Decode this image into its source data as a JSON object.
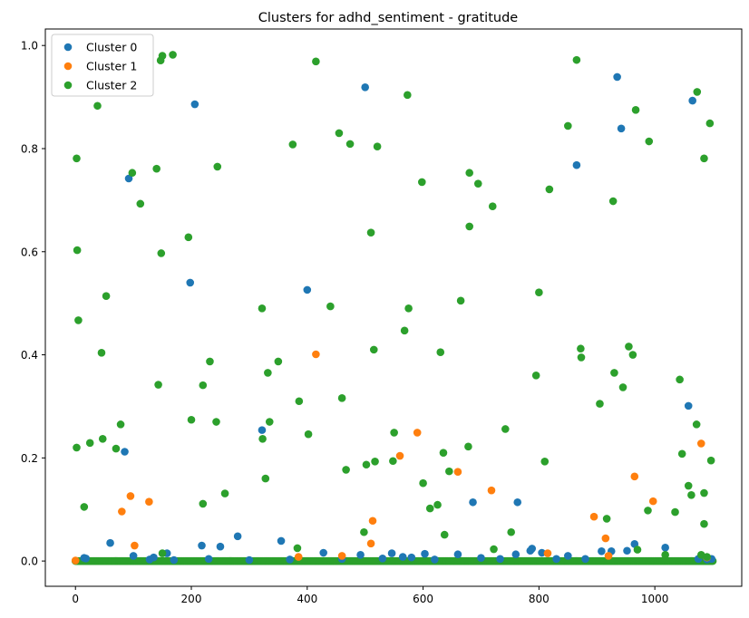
{
  "chart_data": {
    "type": "scatter",
    "title": "Clusters for adhd_sentiment - gratitude",
    "xlabel": "",
    "ylabel": "",
    "xlim": [
      -52,
      1150
    ],
    "ylim": [
      -0.049,
      1.032
    ],
    "x_ticks": [
      0,
      200,
      400,
      600,
      800,
      1000
    ],
    "y_ticks": [
      0.0,
      0.2,
      0.4,
      0.6,
      0.8,
      1.0
    ],
    "y_tick_labels": [
      "0.0",
      "0.2",
      "0.4",
      "0.6",
      "0.8",
      "1.0"
    ],
    "grid": false,
    "legend_position": "top-left",
    "series": [
      {
        "name": "Cluster 0",
        "color": "#1f77b4",
        "points": [
          [
            15,
            0.006
          ],
          [
            18,
            0.005
          ],
          [
            60,
            0.035
          ],
          [
            85,
            0.212
          ],
          [
            92,
            0.742
          ],
          [
            100,
            0.01
          ],
          [
            128,
            0.003
          ],
          [
            135,
            0.007
          ],
          [
            158,
            0.015
          ],
          [
            170,
            0.002
          ],
          [
            198,
            0.54
          ],
          [
            206,
            0.886
          ],
          [
            218,
            0.03
          ],
          [
            230,
            0.004
          ],
          [
            250,
            0.028
          ],
          [
            280,
            0.048
          ],
          [
            300,
            0.002
          ],
          [
            322,
            0.254
          ],
          [
            355,
            0.039
          ],
          [
            370,
            0.003
          ],
          [
            400,
            0.526
          ],
          [
            428,
            0.016
          ],
          [
            460,
            0.004
          ],
          [
            492,
            0.012
          ],
          [
            500,
            0.919
          ],
          [
            530,
            0.005
          ],
          [
            546,
            0.015
          ],
          [
            565,
            0.008
          ],
          [
            580,
            0.007
          ],
          [
            603,
            0.014
          ],
          [
            620,
            0.003
          ],
          [
            660,
            0.013
          ],
          [
            686,
            0.114
          ],
          [
            700,
            0.006
          ],
          [
            733,
            0.004
          ],
          [
            760,
            0.013
          ],
          [
            763,
            0.114
          ],
          [
            785,
            0.02
          ],
          [
            788,
            0.024
          ],
          [
            805,
            0.016
          ],
          [
            830,
            0.004
          ],
          [
            850,
            0.01
          ],
          [
            865,
            0.768
          ],
          [
            880,
            0.004
          ],
          [
            908,
            0.019
          ],
          [
            925,
            0.019
          ],
          [
            935,
            0.939
          ],
          [
            942,
            0.839
          ],
          [
            952,
            0.02
          ],
          [
            965,
            0.033
          ],
          [
            1018,
            0.026
          ],
          [
            1058,
            0.301
          ],
          [
            1065,
            0.893
          ],
          [
            1075,
            0.004
          ],
          [
            1090,
            0.003
          ],
          [
            1098,
            0.004
          ]
        ]
      },
      {
        "name": "Cluster 1",
        "color": "#ff7f0e",
        "points": [
          [
            0,
            0.001
          ],
          [
            80,
            0.096
          ],
          [
            95,
            0.126
          ],
          [
            102,
            0.03
          ],
          [
            127,
            0.115
          ],
          [
            385,
            0.008
          ],
          [
            415,
            0.401
          ],
          [
            460,
            0.01
          ],
          [
            510,
            0.034
          ],
          [
            513,
            0.078
          ],
          [
            560,
            0.204
          ],
          [
            590,
            0.249
          ],
          [
            660,
            0.173
          ],
          [
            718,
            0.137
          ],
          [
            815,
            0.015
          ],
          [
            895,
            0.086
          ],
          [
            915,
            0.044
          ],
          [
            920,
            0.01
          ],
          [
            965,
            0.164
          ],
          [
            997,
            0.116
          ],
          [
            1080,
            0.228
          ],
          [
            1090,
            0.007
          ]
        ]
      },
      {
        "name": "Cluster 2",
        "color": "#2ca02c",
        "points": [
          [
            2,
            0.781
          ],
          [
            2,
            0.22
          ],
          [
            3,
            0.603
          ],
          [
            5,
            0.467
          ],
          [
            15,
            0.105
          ],
          [
            25,
            0.229
          ],
          [
            38,
            0.883
          ],
          [
            45,
            0.404
          ],
          [
            47,
            0.237
          ],
          [
            53,
            0.514
          ],
          [
            70,
            0.218
          ],
          [
            78,
            0.265
          ],
          [
            98,
            0.753
          ],
          [
            112,
            0.693
          ],
          [
            140,
            0.761
          ],
          [
            143,
            0.342
          ],
          [
            147,
            0.971
          ],
          [
            148,
            0.597
          ],
          [
            150,
            0.98
          ],
          [
            150,
            0.015
          ],
          [
            168,
            0.982
          ],
          [
            195,
            0.628
          ],
          [
            200,
            0.274
          ],
          [
            220,
            0.341
          ],
          [
            220,
            0.111
          ],
          [
            232,
            0.387
          ],
          [
            243,
            0.27
          ],
          [
            245,
            0.765
          ],
          [
            258,
            0.131
          ],
          [
            322,
            0.49
          ],
          [
            323,
            0.237
          ],
          [
            328,
            0.16
          ],
          [
            332,
            0.365
          ],
          [
            335,
            0.27
          ],
          [
            350,
            0.387
          ],
          [
            375,
            0.808
          ],
          [
            383,
            0.025
          ],
          [
            386,
            0.31
          ],
          [
            402,
            0.246
          ],
          [
            415,
            0.969
          ],
          [
            440,
            0.494
          ],
          [
            455,
            0.83
          ],
          [
            460,
            0.316
          ],
          [
            467,
            0.177
          ],
          [
            474,
            0.809
          ],
          [
            498,
            0.056
          ],
          [
            502,
            0.187
          ],
          [
            510,
            0.637
          ],
          [
            515,
            0.41
          ],
          [
            517,
            0.193
          ],
          [
            521,
            0.804
          ],
          [
            548,
            0.194
          ],
          [
            550,
            0.249
          ],
          [
            568,
            0.447
          ],
          [
            573,
            0.904
          ],
          [
            575,
            0.49
          ],
          [
            598,
            0.735
          ],
          [
            600,
            0.151
          ],
          [
            612,
            0.102
          ],
          [
            625,
            0.109
          ],
          [
            630,
            0.405
          ],
          [
            635,
            0.21
          ],
          [
            637,
            0.051
          ],
          [
            645,
            0.174
          ],
          [
            665,
            0.505
          ],
          [
            678,
            0.222
          ],
          [
            680,
            0.753
          ],
          [
            680,
            0.649
          ],
          [
            695,
            0.732
          ],
          [
            720,
            0.688
          ],
          [
            722,
            0.023
          ],
          [
            742,
            0.256
          ],
          [
            752,
            0.056
          ],
          [
            795,
            0.36
          ],
          [
            800,
            0.521
          ],
          [
            810,
            0.193
          ],
          [
            818,
            0.721
          ],
          [
            850,
            0.844
          ],
          [
            865,
            0.972
          ],
          [
            872,
            0.412
          ],
          [
            873,
            0.395
          ],
          [
            905,
            0.305
          ],
          [
            917,
            0.082
          ],
          [
            928,
            0.698
          ],
          [
            930,
            0.365
          ],
          [
            945,
            0.337
          ],
          [
            955,
            0.416
          ],
          [
            962,
            0.4
          ],
          [
            967,
            0.875
          ],
          [
            970,
            0.022
          ],
          [
            988,
            0.098
          ],
          [
            990,
            0.814
          ],
          [
            1018,
            0.012
          ],
          [
            1035,
            0.095
          ],
          [
            1043,
            0.352
          ],
          [
            1047,
            0.208
          ],
          [
            1058,
            0.146
          ],
          [
            1063,
            0.128
          ],
          [
            1072,
            0.265
          ],
          [
            1073,
            0.91
          ],
          [
            1080,
            0.012
          ],
          [
            1085,
            0.781
          ],
          [
            1085,
            0.132
          ],
          [
            1085,
            0.072
          ],
          [
            1090,
            0.008
          ],
          [
            1095,
            0.849
          ],
          [
            1097,
            0.195
          ]
        ]
      }
    ],
    "dense_band": {
      "description_values": {
        "x_min": 0,
        "x_max": 1100,
        "y": 0.0,
        "count": 1100
      },
      "color": "#2ca02c"
    }
  }
}
